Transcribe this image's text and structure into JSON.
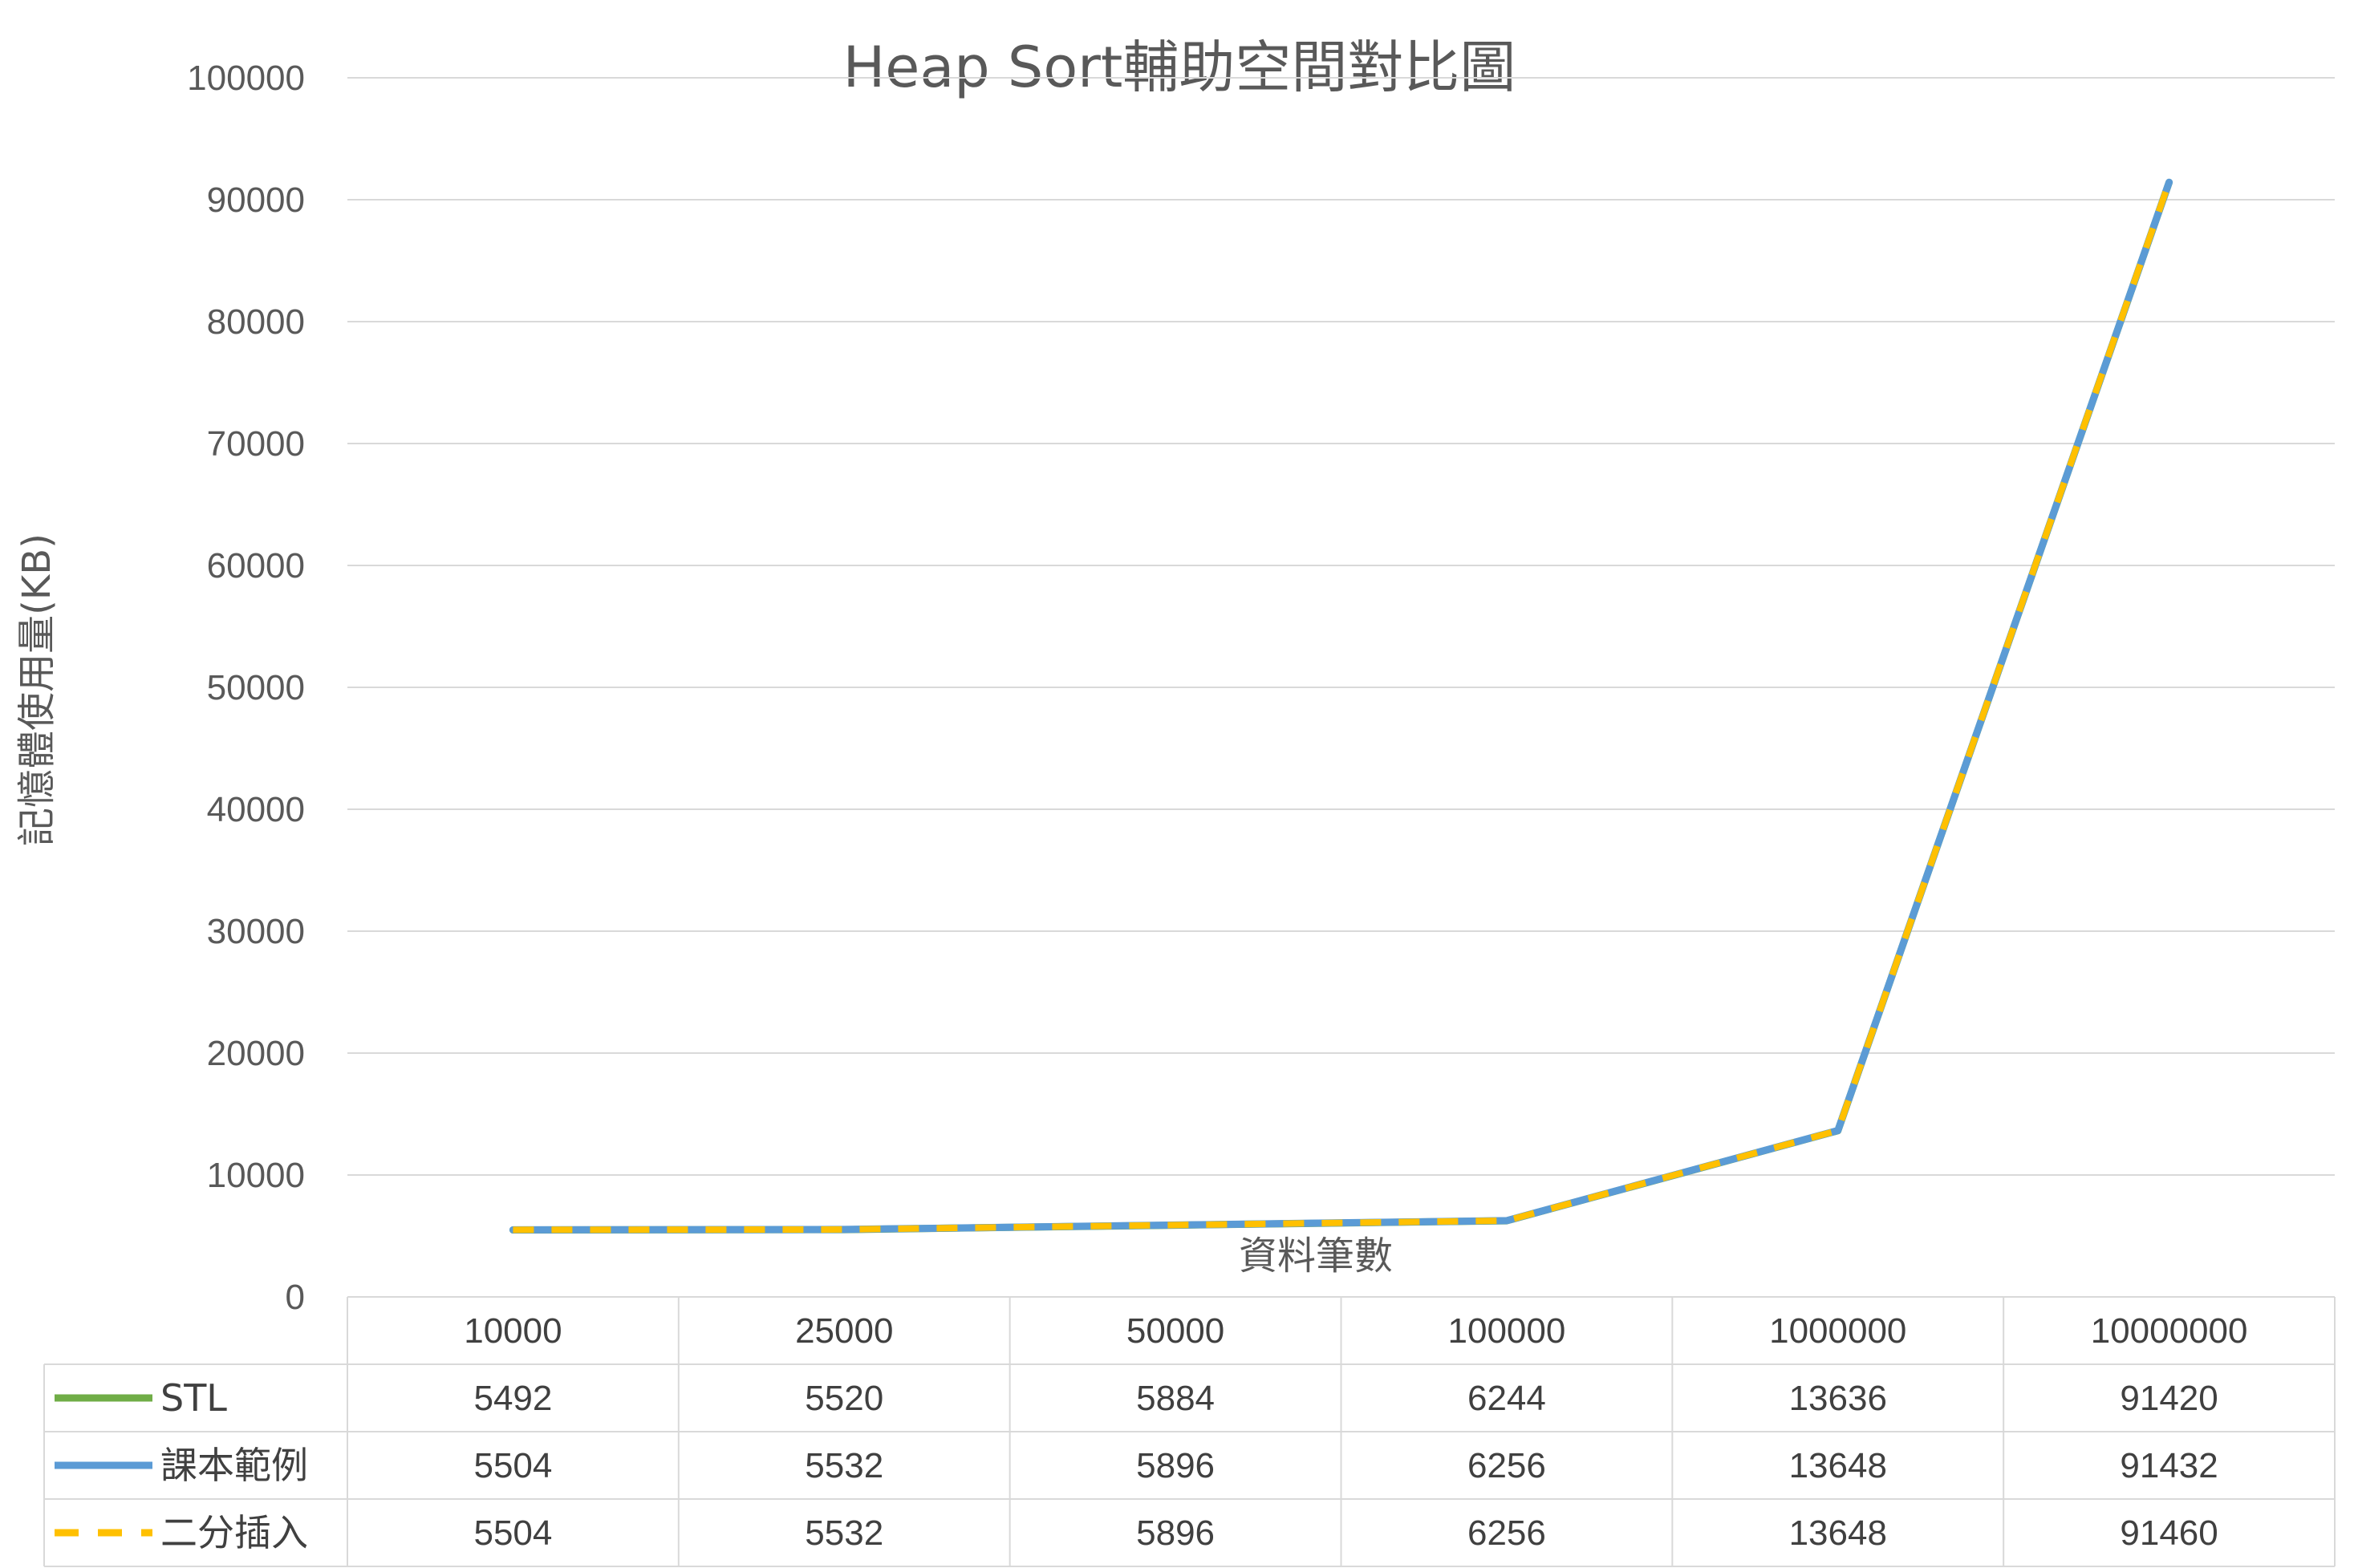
{
  "chart_data": {
    "type": "line",
    "title": "Heap Sort輔助空間對比圖",
    "xlabel": "資料筆數",
    "ylabel": "記憶體使用量(KB)",
    "ylim": [
      0,
      100000
    ],
    "yticks": [
      "0",
      "10000",
      "20000",
      "30000",
      "40000",
      "50000",
      "60000",
      "70000",
      "80000",
      "90000",
      "100000"
    ],
    "categories": [
      "10000",
      "25000",
      "50000",
      "100000",
      "1000000",
      "10000000"
    ],
    "grid": true,
    "legend": "data-table",
    "series": [
      {
        "name": "STL",
        "values": [
          5492,
          5520,
          5884,
          6244,
          13636,
          91420
        ],
        "color": "#70ad47",
        "style": "solid"
      },
      {
        "name": "課本範例",
        "values": [
          5504,
          5532,
          5896,
          6256,
          13648,
          91432
        ],
        "color": "#5b9bd5",
        "style": "solid"
      },
      {
        "name": "二分插入",
        "values": [
          5504,
          5532,
          5896,
          6256,
          13648,
          91460
        ],
        "color": "#ffc000",
        "style": "dashed"
      }
    ]
  }
}
